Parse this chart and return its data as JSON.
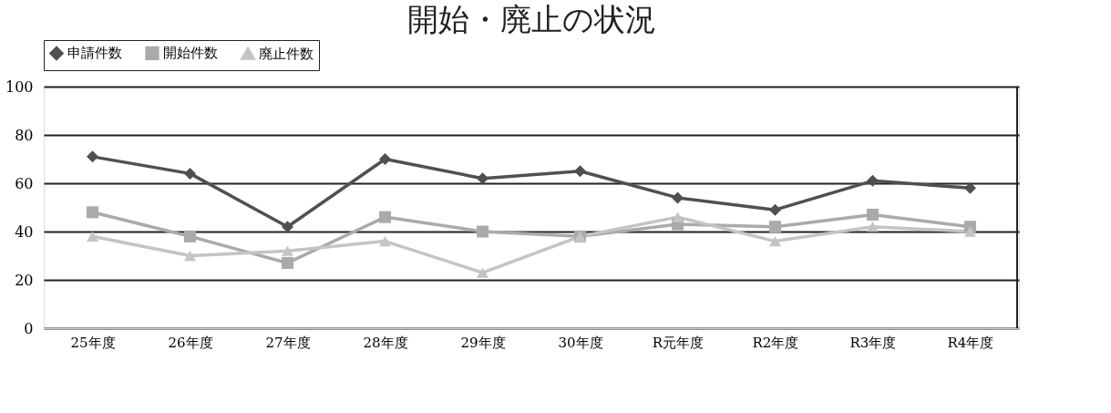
{
  "chart_data": {
    "type": "line",
    "title": "開始・廃止の状況",
    "categories": [
      "25年度",
      "26年度",
      "27年度",
      "28年度",
      "29年度",
      "30年度",
      "R元年度",
      "R2年度",
      "R3年度",
      "R4年度"
    ],
    "series": [
      {
        "name": "申請件数",
        "color": "#505050",
        "marker": "diamond",
        "values": [
          71,
          64,
          42,
          70,
          62,
          65,
          54,
          49,
          61,
          58
        ]
      },
      {
        "name": "開始件数",
        "color": "#aaaaaa",
        "marker": "square",
        "values": [
          48,
          38,
          27,
          46,
          40,
          38,
          43,
          42,
          47,
          42
        ]
      },
      {
        "name": "廃止件数",
        "color": "#c4c4c4",
        "marker": "triangle",
        "values": [
          38,
          30,
          32,
          36,
          23,
          38,
          46,
          36,
          42,
          40
        ]
      }
    ],
    "ylim": [
      0,
      100
    ],
    "yticks": [
      0,
      20,
      40,
      60,
      80,
      100
    ],
    "grid": "y",
    "legend": "top",
    "line_style": "solid"
  }
}
